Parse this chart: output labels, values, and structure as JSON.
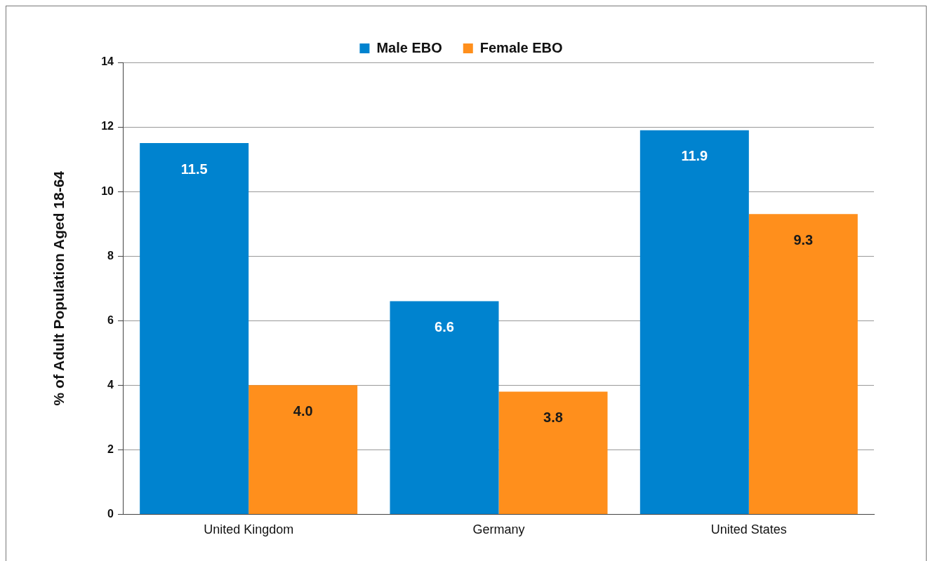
{
  "chart_data": {
    "type": "bar",
    "categories": [
      "United Kingdom",
      "Germany",
      "United States"
    ],
    "ylabel": "% of Adult Population Aged 18-64",
    "series": [
      {
        "name": "Male EBO",
        "color": "#0083cf",
        "values": [
          11.5,
          6.6,
          11.9
        ],
        "value_labels": [
          "11.5",
          "6.6",
          "11.9"
        ]
      },
      {
        "name": "Female EBO",
        "color": "#ff8f1c",
        "values": [
          4.0,
          3.8,
          9.3
        ],
        "value_labels": [
          "4.0",
          "3.8",
          "9.3"
        ]
      }
    ],
    "ylim": [
      0,
      14
    ],
    "yticks": [
      0,
      2,
      4,
      6,
      8,
      10,
      12,
      14
    ],
    "grid": "y",
    "legend": "top"
  }
}
